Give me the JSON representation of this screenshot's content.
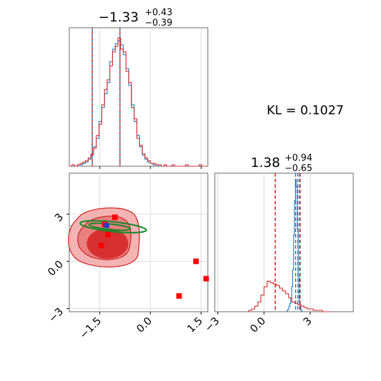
{
  "figure": {
    "kl_label": "KL = 0.1027"
  },
  "chart_data": [
    {
      "type": "histogram",
      "panel": "marginal-param-1",
      "title_main": "−1.33",
      "title_sup": "+0.43",
      "title_sub": "−0.39",
      "xlim": [
        -2.4,
        1.7
      ],
      "xticks": [
        -1.5,
        0.0,
        1.5
      ],
      "quantile_lines": [
        -1.72,
        -1.33,
        -0.9
      ],
      "series": [
        {
          "color": "#1f77b4",
          "x_start": -2.4,
          "bin_width": 0.08,
          "counts": [
            0,
            0,
            0,
            1,
            1,
            2,
            3,
            5,
            8,
            14,
            20,
            32,
            42,
            52,
            60,
            75,
            84,
            88,
            90,
            87,
            80,
            70,
            58,
            44,
            32,
            22,
            14,
            8,
            5,
            3,
            2,
            1,
            1,
            0,
            0,
            0,
            0,
            0,
            0,
            0,
            0,
            0,
            0,
            0,
            0,
            0,
            0,
            0,
            0,
            0,
            0
          ]
        },
        {
          "color": "#d62728",
          "x_start": -2.4,
          "bin_width": 0.08,
          "counts": [
            0,
            1,
            0,
            1,
            2,
            3,
            4,
            6,
            9,
            13,
            22,
            30,
            44,
            55,
            62,
            72,
            82,
            86,
            92,
            84,
            82,
            68,
            60,
            42,
            34,
            20,
            15,
            9,
            6,
            4,
            2,
            2,
            1,
            1,
            0,
            1,
            0,
            0,
            1,
            0,
            0,
            0,
            0,
            1,
            0,
            0,
            0,
            0,
            1,
            0,
            0
          ]
        }
      ]
    },
    {
      "type": "histogram",
      "panel": "marginal-param-2",
      "title_main": "1.38",
      "title_sup": "+0.94",
      "title_sub": "−0.65",
      "xlim": [
        -3.2,
        5.8
      ],
      "xticks": [
        -3,
        0,
        3
      ],
      "quantile_lines_red": [
        0.73,
        1.38,
        2.32
      ],
      "quantile_lines_blue": [
        2.05,
        2.2,
        2.35
      ],
      "series": [
        {
          "color": "#1f77b4",
          "x_start": 1.5,
          "bin_width": 0.06,
          "counts": [
            1,
            2,
            4,
            6,
            10,
            18,
            30,
            55,
            80,
            95,
            90,
            60,
            25,
            8,
            3,
            1,
            0
          ]
        },
        {
          "color": "#d62728",
          "x_start": -1.0,
          "bin_width": 0.2,
          "counts": [
            1,
            2,
            4,
            7,
            12,
            18,
            22,
            21,
            20,
            19,
            17,
            15,
            13,
            10,
            7,
            6,
            5,
            4,
            3,
            2,
            2,
            1,
            1,
            1,
            0,
            0,
            0
          ]
        }
      ]
    },
    {
      "type": "scatter-contour",
      "panel": "joint",
      "xlim": [
        -2.4,
        1.7
      ],
      "ylim": [
        -3.2,
        5.6
      ],
      "xticks": [
        -1.5,
        0.0,
        1.5
      ],
      "yticks": [
        -3,
        0,
        3
      ],
      "blue_center": [
        -1.4,
        2.2
      ],
      "green_center": [
        -1.1,
        2.2
      ],
      "red_markers": [
        [
          -1.05,
          2.8
        ],
        [
          -1.25,
          1.7
        ],
        [
          -1.45,
          1.0
        ],
        [
          1.35,
          0.0
        ],
        [
          1.65,
          -1.1
        ],
        [
          0.85,
          -2.2
        ],
        [
          -1.35,
          2.35
        ]
      ],
      "blue_markers": [
        [
          -1.3,
          2.3
        ]
      ]
    }
  ]
}
